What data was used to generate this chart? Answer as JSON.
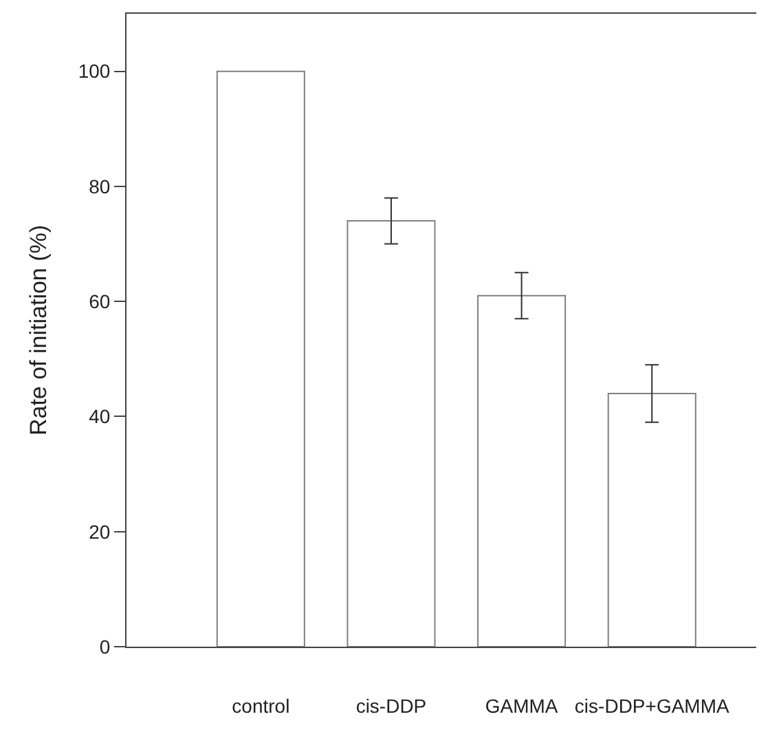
{
  "chart_data": {
    "type": "bar",
    "ylabel": "Rate of initiation (%)",
    "categories": [
      "control",
      "cis-DDP",
      "GAMMA",
      "cis-DDP+GAMMA"
    ],
    "values": [
      100,
      74,
      61,
      44
    ],
    "errors": [
      null,
      4,
      4,
      5
    ],
    "color": "#808080",
    "ylim": [
      0,
      110
    ],
    "yticks": [
      0,
      20,
      40,
      60,
      80,
      100
    ],
    "legend": false
  }
}
